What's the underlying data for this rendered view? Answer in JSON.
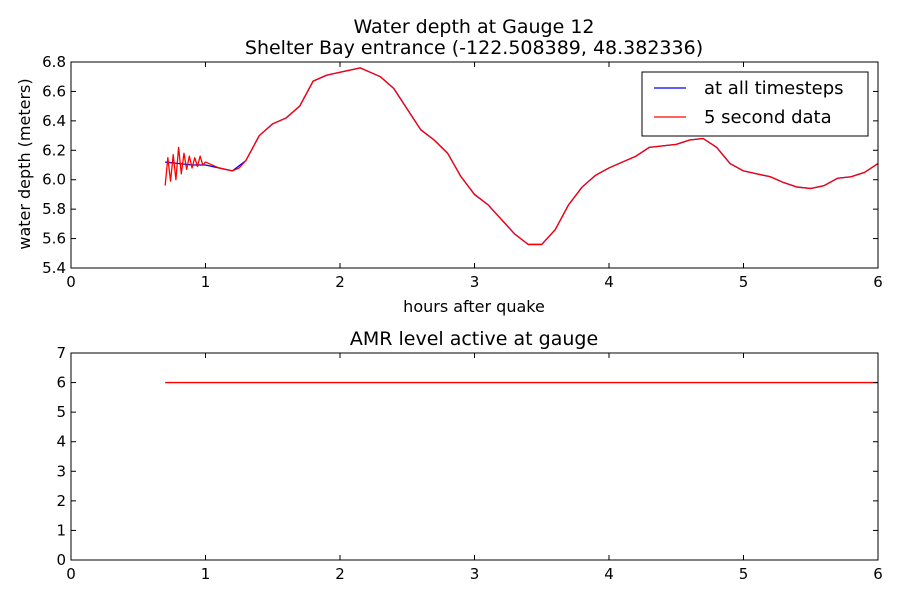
{
  "chart_data": [
    {
      "type": "line",
      "title": "Water depth at Gauge 12",
      "subtitle": "Shelter Bay entrance  (-122.508389, 48.382336)",
      "xlabel": "hours after quake",
      "ylabel": "water depth (meters)",
      "xlim": [
        0,
        6
      ],
      "ylim": [
        5.4,
        6.8
      ],
      "xticks": [
        "0",
        "1",
        "2",
        "3",
        "4",
        "5",
        "6"
      ],
      "yticks": [
        "5.4",
        "5.6",
        "5.8",
        "6.0",
        "6.2",
        "6.4",
        "6.6",
        "6.8"
      ],
      "legend_position": "top-right",
      "grid": false,
      "series": [
        {
          "name": "at all timesteps",
          "color": "#0000ff",
          "x": [
            0.7,
            0.8,
            0.9,
            1.0,
            1.1,
            1.2,
            1.3,
            1.4,
            1.5,
            1.6,
            1.7,
            1.8,
            1.9,
            2.0,
            2.1,
            2.15,
            2.2,
            2.3,
            2.4,
            2.5,
            2.6,
            2.7,
            2.8,
            2.9,
            3.0,
            3.1,
            3.2,
            3.3,
            3.4,
            3.5,
            3.6,
            3.7,
            3.8,
            3.9,
            4.0,
            4.1,
            4.2,
            4.3,
            4.4,
            4.5,
            4.6,
            4.7,
            4.8,
            4.9,
            5.0,
            5.1,
            5.2,
            5.3,
            5.4,
            5.5,
            5.6,
            5.7,
            5.8,
            5.9,
            6.0
          ],
          "y": [
            6.12,
            6.11,
            6.1,
            6.1,
            6.08,
            6.06,
            6.13,
            6.3,
            6.38,
            6.42,
            6.5,
            6.67,
            6.71,
            6.73,
            6.75,
            6.76,
            6.74,
            6.7,
            6.62,
            6.48,
            6.34,
            6.27,
            6.18,
            6.02,
            5.9,
            5.83,
            5.73,
            5.63,
            5.56,
            5.56,
            5.66,
            5.83,
            5.95,
            6.03,
            6.08,
            6.12,
            6.16,
            6.22,
            6.23,
            6.24,
            6.27,
            6.28,
            6.22,
            6.11,
            6.06,
            6.04,
            6.02,
            5.98,
            5.95,
            5.94,
            5.96,
            6.01,
            6.02,
            6.05,
            6.11
          ]
        },
        {
          "name": "5 second data",
          "color": "#ff0000",
          "x": [
            0.7,
            0.72,
            0.74,
            0.76,
            0.78,
            0.8,
            0.82,
            0.84,
            0.86,
            0.88,
            0.9,
            0.92,
            0.94,
            0.96,
            0.98,
            1.0,
            1.1,
            1.2,
            1.25,
            1.3,
            1.4,
            1.5,
            1.6,
            1.7,
            1.8,
            1.9,
            2.0,
            2.1,
            2.15,
            2.2,
            2.3,
            2.4,
            2.5,
            2.6,
            2.7,
            2.8,
            2.9,
            3.0,
            3.1,
            3.2,
            3.3,
            3.4,
            3.5,
            3.6,
            3.7,
            3.8,
            3.9,
            4.0,
            4.1,
            4.2,
            4.3,
            4.4,
            4.5,
            4.6,
            4.7,
            4.8,
            4.9,
            5.0,
            5.1,
            5.2,
            5.3,
            5.4,
            5.5,
            5.6,
            5.7,
            5.8,
            5.9,
            6.0
          ],
          "y": [
            5.96,
            6.15,
            5.99,
            6.17,
            6.0,
            6.22,
            6.04,
            6.18,
            6.07,
            6.16,
            6.08,
            6.15,
            6.09,
            6.16,
            6.1,
            6.12,
            6.08,
            6.06,
            6.08,
            6.13,
            6.3,
            6.38,
            6.42,
            6.5,
            6.67,
            6.71,
            6.73,
            6.75,
            6.76,
            6.74,
            6.7,
            6.62,
            6.48,
            6.34,
            6.27,
            6.18,
            6.02,
            5.9,
            5.83,
            5.73,
            5.63,
            5.56,
            5.56,
            5.66,
            5.83,
            5.95,
            6.03,
            6.08,
            6.12,
            6.16,
            6.22,
            6.23,
            6.24,
            6.27,
            6.28,
            6.22,
            6.11,
            6.06,
            6.04,
            6.02,
            5.98,
            5.95,
            5.94,
            5.96,
            6.01,
            6.02,
            6.05,
            6.11
          ]
        }
      ]
    },
    {
      "type": "line",
      "title": "AMR level active at gauge",
      "xlabel": "",
      "ylabel": "",
      "xlim": [
        0,
        6
      ],
      "ylim": [
        0,
        7
      ],
      "xticks": [
        "0",
        "1",
        "2",
        "3",
        "4",
        "5",
        "6"
      ],
      "yticks": [
        "0",
        "1",
        "2",
        "3",
        "4",
        "5",
        "6",
        "7"
      ],
      "grid": false,
      "series": [
        {
          "color": "#ff0000",
          "x": [
            0.7,
            6.0
          ],
          "y": [
            6,
            6
          ]
        }
      ]
    }
  ]
}
